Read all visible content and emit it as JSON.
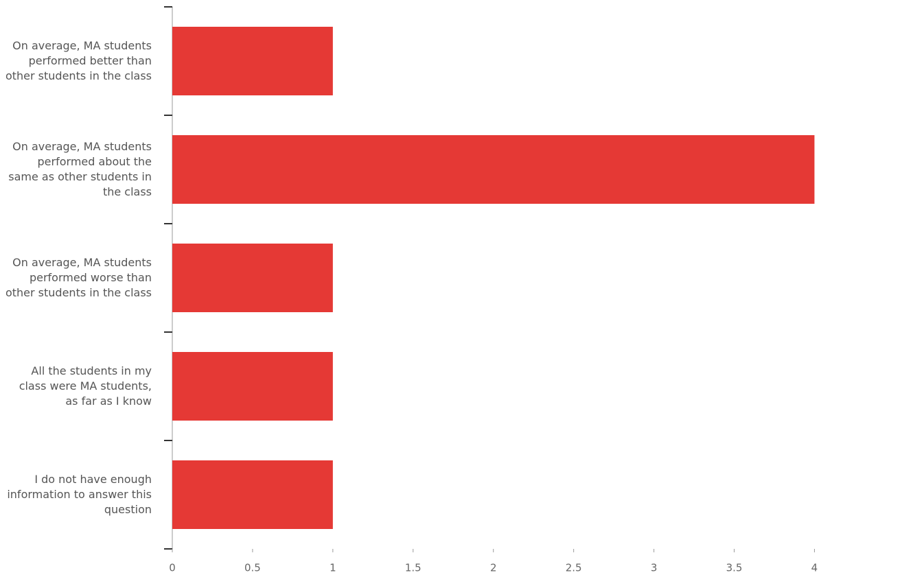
{
  "chart_data": {
    "type": "bar",
    "orientation": "horizontal",
    "categories": [
      "On average, MA students performed better than other students in the class",
      "On average, MA students performed about the same as other students in the class",
      "On average, MA students performed worse than other students in the class",
      "All the students in my class were MA students, as far as I know",
      "I do not have enough information to answer this question"
    ],
    "values": [
      1,
      4,
      1,
      1,
      1
    ],
    "color": "#e53935",
    "xlim": [
      0,
      4.4
    ],
    "xticks": [
      0,
      0.5,
      1,
      1.5,
      2,
      2.5,
      3,
      3.5,
      4
    ],
    "grid": false
  }
}
